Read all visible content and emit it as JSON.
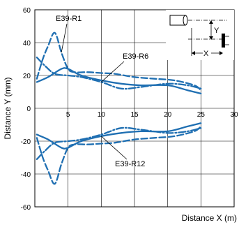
{
  "chart_data": {
    "type": "line",
    "xlabel": "Distance X (m)",
    "ylabel": "Distance Y (mm)",
    "xlim": [
      0,
      30
    ],
    "ylim": [
      -60,
      60
    ],
    "x_ticks": [
      5,
      10,
      15,
      20,
      25,
      30
    ],
    "y_ticks": [
      60,
      40,
      20,
      0,
      -20,
      -40,
      -60
    ],
    "grid": true,
    "line_color": "#1f6fb2",
    "series": [
      {
        "name": "E39-R1",
        "style": "dashed",
        "upper": [
          [
            0.3,
            18
          ],
          [
            1.2,
            30
          ],
          [
            2,
            38
          ],
          [
            3,
            46
          ],
          [
            4,
            34
          ],
          [
            5,
            24
          ],
          [
            6,
            22
          ],
          [
            8,
            22
          ],
          [
            10,
            21.5
          ],
          [
            12,
            21
          ],
          [
            15,
            19
          ],
          [
            18,
            18
          ],
          [
            21,
            17
          ],
          [
            24,
            14
          ],
          [
            25,
            11
          ]
        ],
        "lower": [
          [
            0.3,
            -18
          ],
          [
            1.2,
            -30
          ],
          [
            2,
            -38
          ],
          [
            3,
            -46
          ],
          [
            4,
            -34
          ],
          [
            5,
            -24
          ],
          [
            6,
            -22
          ],
          [
            8,
            -22
          ],
          [
            10,
            -21.5
          ],
          [
            12,
            -21
          ],
          [
            15,
            -19
          ],
          [
            18,
            -18
          ],
          [
            21,
            -17
          ],
          [
            24,
            -14
          ],
          [
            25,
            -11
          ]
        ]
      },
      {
        "name": "E39-R6",
        "style": "dashdot",
        "upper": [
          [
            0.3,
            31
          ],
          [
            1.5,
            26
          ],
          [
            3,
            21
          ],
          [
            5,
            20
          ],
          [
            7,
            19
          ],
          [
            10,
            16
          ],
          [
            13,
            12
          ],
          [
            16,
            13
          ],
          [
            20,
            15
          ],
          [
            23,
            14
          ],
          [
            25,
            12
          ]
        ],
        "lower": [
          [
            0.3,
            -31
          ],
          [
            1.5,
            -26
          ],
          [
            3,
            -21
          ],
          [
            5,
            -20
          ],
          [
            7,
            -19
          ],
          [
            10,
            -16
          ],
          [
            13,
            -12
          ],
          [
            16,
            -13
          ],
          [
            20,
            -15
          ],
          [
            23,
            -14
          ],
          [
            25,
            -12
          ]
        ]
      },
      {
        "name": "E39-R12",
        "style": "solid",
        "upper": [
          [
            0.3,
            16
          ],
          [
            2,
            19
          ],
          [
            4,
            24
          ],
          [
            5,
            24
          ],
          [
            7,
            20
          ],
          [
            10,
            17
          ],
          [
            13,
            15
          ],
          [
            16,
            14
          ],
          [
            20,
            14
          ],
          [
            23,
            11
          ],
          [
            25,
            9
          ]
        ],
        "lower": [
          [
            0.3,
            -16
          ],
          [
            2,
            -19
          ],
          [
            4,
            -24
          ],
          [
            5,
            -24
          ],
          [
            7,
            -20
          ],
          [
            10,
            -17
          ],
          [
            13,
            -15
          ],
          [
            16,
            -14
          ],
          [
            20,
            -14
          ],
          [
            23,
            -11
          ],
          [
            25,
            -9
          ]
        ]
      }
    ],
    "annotations": [
      {
        "text": "E39-R1",
        "target_series": 0,
        "target_point": [
          4,
          34
        ]
      },
      {
        "text": "E39-R6",
        "target_series": 1,
        "target_point": [
          10,
          16
        ]
      },
      {
        "text": "E39-R12",
        "target_series": 2,
        "target_point": [
          10,
          -17
        ]
      }
    ],
    "inset": {
      "x_label": "X",
      "y_label": "Y"
    }
  }
}
